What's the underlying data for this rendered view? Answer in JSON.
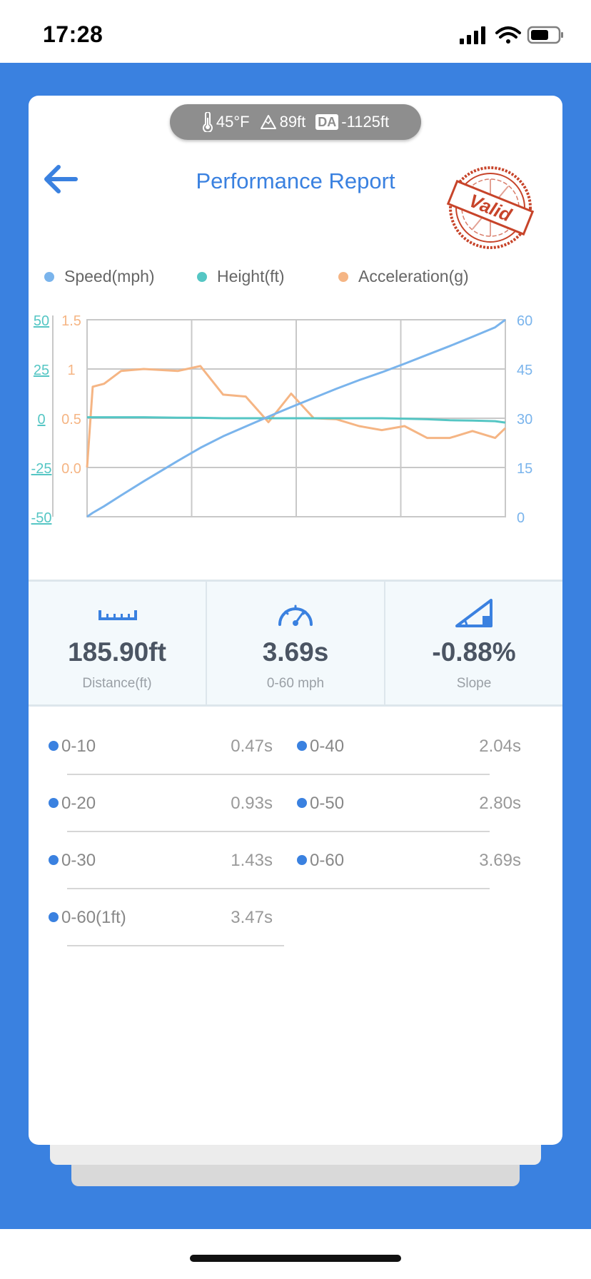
{
  "status_bar": {
    "time": "17:28"
  },
  "conditions": {
    "temperature": "45°F",
    "altitude": "89ft",
    "da_badge": "DA",
    "density_altitude": "-1125ft"
  },
  "header": {
    "title": "Performance Report",
    "stamp_text": "Valid"
  },
  "legend": [
    {
      "label": "Speed(mph)",
      "color": "#7ab4ec"
    },
    {
      "label": "Height(ft)",
      "color": "#55c6c4"
    },
    {
      "label": "Acceleration(g)",
      "color": "#f5b584"
    }
  ],
  "chart_data": {
    "type": "line",
    "x": [
      0,
      0.05,
      0.15,
      0.3,
      0.5,
      0.8,
      1.0,
      1.2,
      1.4,
      1.6,
      1.8,
      2.0,
      2.2,
      2.4,
      2.6,
      2.8,
      3.0,
      3.2,
      3.4,
      3.6,
      3.69
    ],
    "axes": {
      "height": {
        "ticks": [
          "50",
          "25",
          "0",
          "-25",
          "-50"
        ],
        "ylim": [
          -50,
          50
        ]
      },
      "acceleration": {
        "ticks": [
          "1.5",
          "1",
          "0.5",
          "0.0"
        ],
        "ylim": [
          0,
          1.5
        ]
      },
      "speed": {
        "ticks": [
          "60",
          "45",
          "30",
          "15",
          "0"
        ],
        "ylim": [
          0,
          60
        ]
      }
    },
    "series": [
      {
        "name": "Speed(mph)",
        "axis": "speed",
        "values": [
          0,
          1.2,
          3.2,
          6.5,
          10.8,
          17,
          21,
          24.5,
          27.5,
          30.5,
          33.4,
          36.2,
          39,
          41.6,
          44,
          46.6,
          49.3,
          52,
          54.8,
          57.7,
          60
        ]
      },
      {
        "name": "Height(ft)",
        "axis": "height",
        "values": [
          0.5,
          0.5,
          0.5,
          0.5,
          0.5,
          0.3,
          0.2,
          0,
          0,
          0,
          0,
          0,
          0,
          0,
          0,
          -0.2,
          -0.5,
          -1,
          -1.2,
          -1.5,
          -2.2
        ]
      },
      {
        "name": "Acceleration(g)",
        "axis": "acceleration",
        "values": [
          0,
          0.82,
          0.85,
          0.98,
          1.0,
          0.98,
          1.03,
          0.74,
          0.72,
          0.46,
          0.75,
          0.5,
          0.49,
          0.42,
          0.38,
          0.42,
          0.3,
          0.3,
          0.37,
          0.3,
          0.4
        ]
      }
    ]
  },
  "stats": [
    {
      "value": "185.90ft",
      "label": "Distance(ft)",
      "icon": "ruler-icon"
    },
    {
      "value": "3.69s",
      "label": "0-60 mph",
      "icon": "speedometer-icon"
    },
    {
      "value": "-0.88%",
      "label": "Slope",
      "icon": "slope-icon"
    }
  ],
  "splits": [
    {
      "label": "0-10",
      "time": "0.47s"
    },
    {
      "label": "0-40",
      "time": "2.04s"
    },
    {
      "label": "0-20",
      "time": "0.93s"
    },
    {
      "label": "0-50",
      "time": "2.80s"
    },
    {
      "label": "0-30",
      "time": "1.43s"
    },
    {
      "label": "0-60",
      "time": "3.69s"
    },
    {
      "label": "0-60(1ft)",
      "time": "3.47s"
    }
  ]
}
